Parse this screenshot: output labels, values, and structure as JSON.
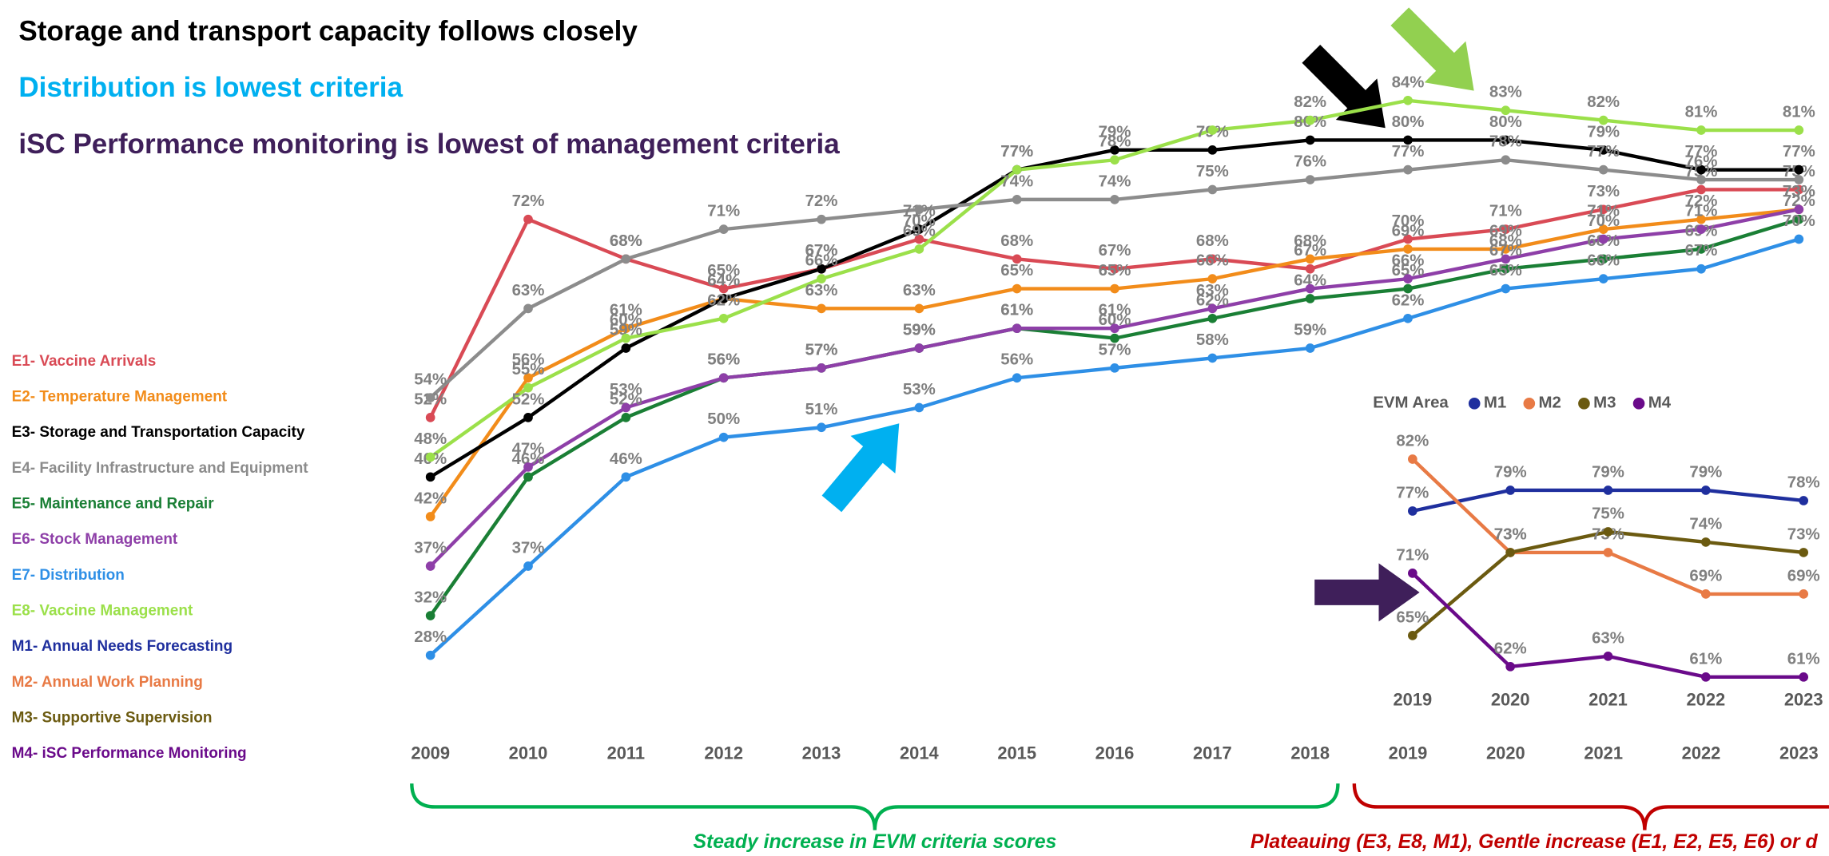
{
  "headings": [
    {
      "text": "Storage and transport capacity follows closely",
      "color": "#000000"
    },
    {
      "text": "Distribution is lowest criteria",
      "color": "#00b0f0"
    },
    {
      "text": "iSC Performance monitoring is lowest of management criteria",
      "color": "#3f1f5a"
    }
  ],
  "annotations": [
    {
      "text": "Steady increase in EVM criteria scores",
      "color": "#00b050"
    },
    {
      "text": "Plateauing (E3, E8, M1), Gentle increase (E1, E2, E5, E6) or d",
      "color": "#c00000"
    }
  ],
  "chart_data": [
    {
      "type": "line",
      "categories": [
        "2009",
        "2010",
        "2011",
        "2012",
        "2013",
        "2014",
        "2015",
        "2016",
        "2017",
        "2018",
        "2019",
        "2020",
        "2021",
        "2022",
        "2023"
      ],
      "ylim": [
        20,
        90
      ],
      "series": [
        {
          "name": "E1- Vaccine Arrivals",
          "color": "#d94a55",
          "values": [
            52,
            72,
            68,
            65,
            67,
            70,
            68,
            67,
            68,
            67,
            70,
            71,
            73,
            75,
            75
          ],
          "value_labels": [
            "52%",
            "72%",
            "68%",
            "65%",
            "67%",
            "70%",
            "68%",
            "67%",
            "68%",
            "67%",
            "70%",
            "71%",
            "73%",
            "75%",
            "75%"
          ]
        },
        {
          "name": "E2- Temperature Management",
          "color": "#f28c1a",
          "values": [
            42,
            56,
            61,
            64,
            63,
            63,
            65,
            65,
            66,
            68,
            69,
            69,
            71,
            72,
            73
          ],
          "value_labels": [
            "42%",
            "56%",
            "61%",
            "64%",
            "63%",
            "63%",
            "65%",
            "65%",
            "66%",
            "68%",
            "69%",
            "69%",
            "71%",
            "72%",
            "73%"
          ]
        },
        {
          "name": "E3- Storage and Transportation Capacity",
          "color": "#000000",
          "values": [
            46,
            52,
            59,
            64,
            67,
            71,
            77,
            79,
            79,
            80,
            80,
            80,
            79,
            77,
            77
          ],
          "value_labels": [
            "46%",
            "52%",
            "59%",
            "64%",
            "67%",
            "71%",
            "77%",
            "79%",
            "79%",
            "80%",
            "80%",
            "80%",
            "79%",
            "77%",
            "77%"
          ]
        },
        {
          "name": "E4- Facility Infrastructure and Equipment",
          "color": "#8c8c8c",
          "values": [
            54,
            63,
            68,
            71,
            72,
            73,
            74,
            74,
            75,
            76,
            77,
            78,
            77,
            76,
            76
          ],
          "value_labels": [
            "54%",
            "63%",
            "68%",
            "71%",
            "72%",
            null,
            "74%",
            "74%",
            "75%",
            "76%",
            "77%",
            "78%",
            "77%",
            "76%",
            null
          ]
        },
        {
          "name": "E5- Maintenance and Repair",
          "color": "#1a7f35",
          "values": [
            32,
            46,
            52,
            56,
            57,
            59,
            61,
            60,
            62,
            64,
            65,
            67,
            68,
            69,
            72
          ],
          "value_labels": [
            "32%",
            "46%",
            "52%",
            "56%",
            "57%",
            "59%",
            "61%",
            "60%",
            "62%",
            "64%",
            "65%",
            "67%",
            "68%",
            "69%",
            "72%"
          ]
        },
        {
          "name": "E6- Stock Management",
          "color": "#8e3fa8",
          "values": [
            37,
            47,
            53,
            56,
            57,
            59,
            61,
            61,
            63,
            65,
            66,
            68,
            70,
            71,
            73
          ],
          "value_labels": [
            "37%",
            "47%",
            "53%",
            "56%",
            "57%",
            "59%",
            "61%",
            "61%",
            "63%",
            null,
            "66%",
            "68%",
            "70%",
            "71%",
            "73%"
          ]
        },
        {
          "name": "E7- Distribution",
          "color": "#2e8fe6",
          "values": [
            28,
            37,
            46,
            50,
            51,
            53,
            56,
            57,
            58,
            59,
            62,
            65,
            66,
            67,
            70
          ],
          "value_labels": [
            "28%",
            "37%",
            "46%",
            "50%",
            "51%",
            "53%",
            "56%",
            "57%",
            "58%",
            "59%",
            "62%",
            "65%",
            "66%",
            "67%",
            "70%"
          ]
        },
        {
          "name": "E8- Vaccine Management",
          "color": "#9be04a",
          "values": [
            48,
            55,
            60,
            62,
            66,
            69,
            77,
            78,
            81,
            82,
            84,
            83,
            82,
            81,
            81
          ],
          "value_labels": [
            "48%",
            "55%",
            "60%",
            "62%",
            "66%",
            "69%",
            "77%",
            "78%",
            null,
            "82%",
            "84%",
            "83%",
            "82%",
            "81%",
            "81%"
          ]
        }
      ]
    },
    {
      "type": "line",
      "categories": [
        "2019",
        "2020",
        "2021",
        "2022",
        "2023"
      ],
      "ylim": [
        55,
        85
      ],
      "legend_title": "EVM Area",
      "series": [
        {
          "name": "M1",
          "description": "M1- Annual Needs Forecasting",
          "color": "#1f2f9e",
          "values": [
            77,
            79,
            79,
            79,
            78
          ],
          "value_labels": [
            "77%",
            "79%",
            "79%",
            "79%",
            "78%"
          ]
        },
        {
          "name": "M2",
          "description": "M2- Annual Work Planning",
          "color": "#e87a45",
          "values": [
            82,
            73,
            73,
            69,
            69
          ],
          "value_labels": [
            "82%",
            "73%",
            "73%",
            "69%",
            "69%"
          ]
        },
        {
          "name": "M3",
          "description": "M3- Supportive Supervision",
          "color": "#6b5a10",
          "values": [
            65,
            73,
            75,
            74,
            73
          ],
          "value_labels": [
            "65%",
            "73%",
            "75%",
            "74%",
            "73%"
          ]
        },
        {
          "name": "M4",
          "description": "M4- iSC Performance Monitoring",
          "color": "#6a0a8a",
          "values": [
            71,
            62,
            63,
            61,
            61
          ],
          "value_labels": [
            "71%",
            "62%",
            "63%",
            "61%",
            "61%"
          ]
        }
      ]
    }
  ]
}
